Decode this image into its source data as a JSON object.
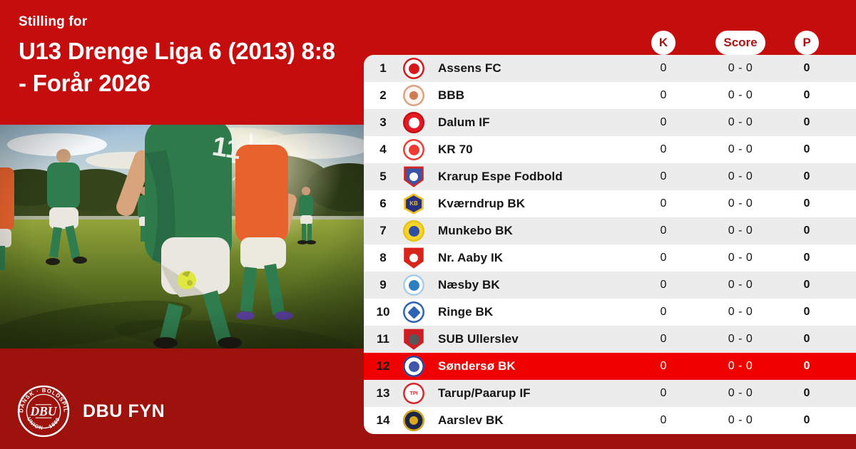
{
  "page": {
    "eyebrow": "Stilling for",
    "title_lines": [
      "U13 Drenge Liga 6 (2013) 8:8",
      "- Forår 2026"
    ]
  },
  "branding": {
    "org_name": "DBU FYN",
    "seal_top_text": "DANSK · BOLDSPIL",
    "seal_bottom_text": "UNION · 1889",
    "seal_center": "DBU"
  },
  "standings": {
    "columns": {
      "matches": "K",
      "score": "Score",
      "points": "P"
    },
    "rows": [
      {
        "pos": "1",
        "club": "Assens FC",
        "k": "0",
        "score": "0 - 0",
        "p": "0",
        "highlight": false,
        "logo": {
          "shape": "circle",
          "bg": "#ffffff",
          "ring": "#d5191d",
          "inner": "#d5191d",
          "inner_shape": "dot"
        }
      },
      {
        "pos": "2",
        "club": "BBB",
        "k": "0",
        "score": "0 - 0",
        "p": "0",
        "highlight": false,
        "logo": {
          "shape": "circle",
          "bg": "#fdf4ee",
          "ring": "#dba183",
          "inner": "#cd7c57",
          "inner_shape": "dot small"
        }
      },
      {
        "pos": "3",
        "club": "Dalum IF",
        "k": "0",
        "score": "0 - 0",
        "p": "0",
        "highlight": false,
        "logo": {
          "shape": "circle",
          "bg": "#e61a23",
          "ring": "#c21117",
          "inner": "#ffffff",
          "inner_shape": "dot"
        }
      },
      {
        "pos": "4",
        "club": "KR 70",
        "k": "0",
        "score": "0 - 0",
        "p": "0",
        "highlight": false,
        "logo": {
          "shape": "circle",
          "bg": "#ffffff",
          "ring": "#ef3b33",
          "inner": "#ef3b33",
          "inner_shape": "dot"
        }
      },
      {
        "pos": "5",
        "club": "Krarup Espe Fodbold",
        "k": "0",
        "score": "0 - 0",
        "p": "0",
        "highlight": false,
        "logo": {
          "shape": "shield",
          "bg": "#3a55a8",
          "ring": "#cf2620",
          "inner": "#ffffff",
          "inner_shape": "dot small"
        }
      },
      {
        "pos": "6",
        "club": "Kværndrup BK",
        "k": "0",
        "score": "0 - 0",
        "p": "0",
        "highlight": false,
        "logo": {
          "shape": "hex",
          "bg": "#27307f",
          "ring": "#f0c01c",
          "text": "KB",
          "text_color": "#f0c01c"
        }
      },
      {
        "pos": "7",
        "club": "Munkebo BK",
        "k": "0",
        "score": "0 - 0",
        "p": "0",
        "highlight": false,
        "logo": {
          "shape": "circle",
          "bg": "#f6d42a",
          "ring": "#e7c31a",
          "inner": "#2e4fa2",
          "inner_shape": "dot"
        }
      },
      {
        "pos": "8",
        "club": "Nr. Aaby IK",
        "k": "0",
        "score": "0 - 0",
        "p": "0",
        "highlight": false,
        "logo": {
          "shape": "shield",
          "bg": "#d8251c",
          "ring": "#d8251c",
          "inner": "#ffffff",
          "inner_shape": "dot small"
        }
      },
      {
        "pos": "9",
        "club": "Næsby BK",
        "k": "0",
        "score": "0 - 0",
        "p": "0",
        "highlight": false,
        "logo": {
          "shape": "circle",
          "bg": "#ffffff",
          "ring": "#a8cde8",
          "inner": "#2d7fc1",
          "inner_shape": "dot"
        }
      },
      {
        "pos": "10",
        "club": "Ringe BK",
        "k": "0",
        "score": "0 - 0",
        "p": "0",
        "highlight": false,
        "logo": {
          "shape": "circle",
          "bg": "#ffffff",
          "ring": "#2d62b5",
          "inner": "#2d62b5",
          "inner_shape": "dot diamond"
        }
      },
      {
        "pos": "11",
        "club": "SUB Ullerslev",
        "k": "0",
        "score": "0 - 0",
        "p": "0",
        "highlight": false,
        "logo": {
          "shape": "shield",
          "bg": "#cf1d24",
          "ring": "#cf1d24",
          "inner": "#56575b",
          "inner_shape": "dot"
        }
      },
      {
        "pos": "12",
        "club": "Søndersø BK",
        "k": "0",
        "score": "0 - 0",
        "p": "0",
        "highlight": true,
        "logo": {
          "shape": "circle",
          "bg": "#ffffff",
          "ring": "#2c3f96",
          "inner": "#4056a8",
          "inner_shape": "dot"
        }
      },
      {
        "pos": "13",
        "club": "Tarup/Paarup IF",
        "k": "0",
        "score": "0 - 0",
        "p": "0",
        "highlight": false,
        "logo": {
          "shape": "circle",
          "bg": "#ffffff",
          "ring": "#d7272b",
          "text": "TPI",
          "text_color": "#d7272b"
        }
      },
      {
        "pos": "14",
        "club": "Aarslev BK",
        "k": "0",
        "score": "0 - 0",
        "p": "0",
        "highlight": false,
        "logo": {
          "shape": "circle",
          "bg": "#1c2547",
          "ring": "#d9a917",
          "inner": "#d9a917",
          "inner_shape": "dot small"
        }
      }
    ]
  },
  "colors": {
    "background_top": "#c60d0e",
    "background_bottom": "#9d120c",
    "highlight_row": "#f10000",
    "row_alt": "#ececec",
    "row_base": "#ffffff",
    "badge_text": "#b01111"
  }
}
